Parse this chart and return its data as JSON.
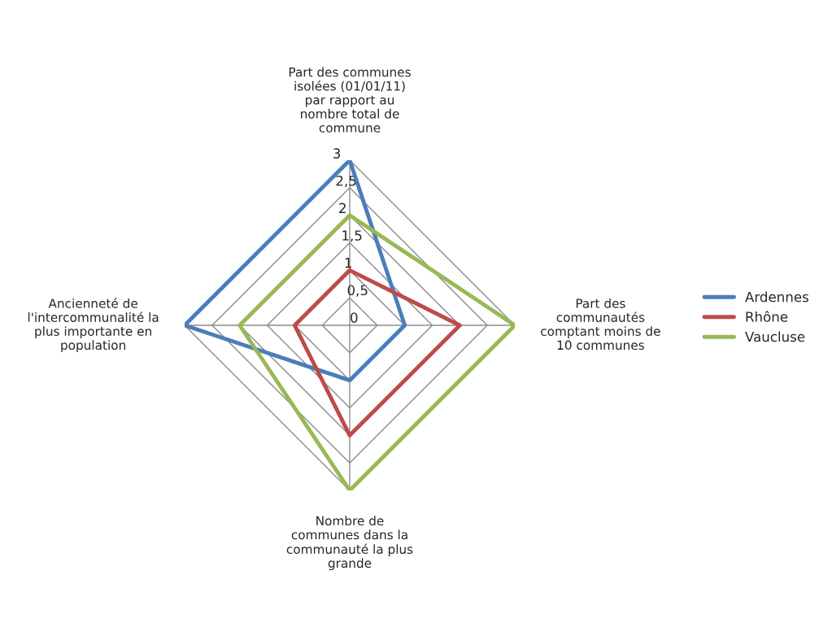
{
  "chart_data": {
    "type": "radar",
    "categories": [
      "Part des communes\nisolées (01/01/11)\npar rapport au\nnombre total de\ncommune",
      "Part des\ncommunautés\ncomptant moins de\n10 communes",
      "Nombre de\ncommunes dans la\ncommunauté la plus\ngrande",
      "Ancienneté de\nl'intercommunalité la\nplus importante en\npopulation"
    ],
    "series": [
      {
        "name": "Ardennes",
        "color": "#4a7ebb",
        "values": [
          3,
          1,
          1,
          3
        ]
      },
      {
        "name": "Rhône",
        "color": "#be4b48",
        "values": [
          1,
          2,
          2,
          1
        ]
      },
      {
        "name": "Vaucluse",
        "color": "#98b954",
        "values": [
          2,
          3,
          3,
          2
        ]
      }
    ],
    "ylim": [
      0,
      3
    ],
    "yticks": [
      0,
      {
        "value": 0.5,
        "label": "0,5"
      },
      1,
      {
        "value": 1.5,
        "label": "1,5"
      },
      2,
      {
        "value": 2.5,
        "label": "2,5"
      },
      3
    ],
    "grid": true,
    "legend": "right"
  }
}
